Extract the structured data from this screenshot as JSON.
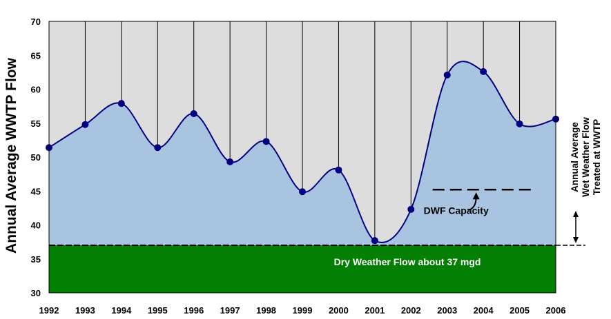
{
  "chart_data": {
    "type": "area",
    "ylabel": "Annual Average WWTP Flow",
    "ylim": [
      30,
      70
    ],
    "yticks": [
      30,
      35,
      40,
      45,
      50,
      55,
      60,
      65,
      70
    ],
    "x_ticks": [
      "1992",
      "1993",
      "1994",
      "1995",
      "1996",
      "1997",
      "1998",
      "1999",
      "2000",
      "2001",
      "2002",
      "2003",
      "2004",
      "2005",
      "2006"
    ],
    "xlim": [
      1992,
      2006
    ],
    "grid": "vertical",
    "series": [
      {
        "x": [
          1992,
          1993,
          1994,
          1995,
          1996,
          1997,
          1998,
          1999,
          2000,
          2001,
          2002,
          2003,
          2004,
          2005,
          2006
        ],
        "values": [
          51.4,
          54.8,
          57.9,
          51.4,
          56.4,
          49.3,
          52.3,
          44.9,
          48.1,
          37.7,
          42.3,
          62.1,
          62.6,
          54.9,
          55.6
        ]
      }
    ],
    "dry_weather": {
      "value": 37,
      "label": "Dry Weather Flow about 37 mgd"
    },
    "dwf_capacity": {
      "value": 45.2,
      "x_range": [
        2002.6,
        2005.4
      ],
      "label": "DWF Capacity"
    },
    "side_label": {
      "lines": [
        "Annual Average",
        "Wet Weather Flow",
        "Treated at WWTP"
      ]
    },
    "colors": {
      "plot_background": "#dddddd",
      "wet_area": "#a8c4e0",
      "dry_area": "#037f03",
      "line": "#000080",
      "marker": "#000080",
      "grid": "#000000",
      "dry_label": "#ffffff",
      "capacity_label": "#000000"
    }
  }
}
